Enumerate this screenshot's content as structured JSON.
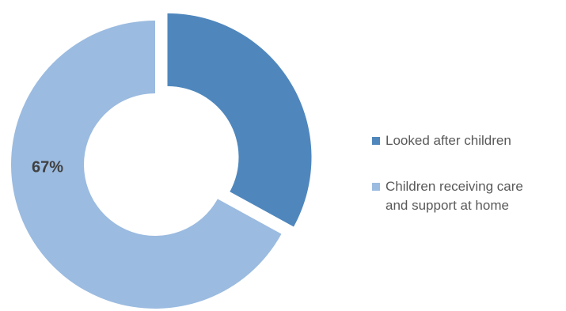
{
  "chart_data": {
    "type": "pie",
    "style": "donut",
    "title": "",
    "legend_position": "right",
    "series": [
      {
        "name": "Looked after children",
        "value": 33,
        "label": "",
        "color": "#4f87bd",
        "exploded": true
      },
      {
        "name": "Children receiving care\nand support at home",
        "value": 67,
        "label": "67%",
        "color": "#9bbbe0",
        "exploded": false
      }
    ]
  }
}
